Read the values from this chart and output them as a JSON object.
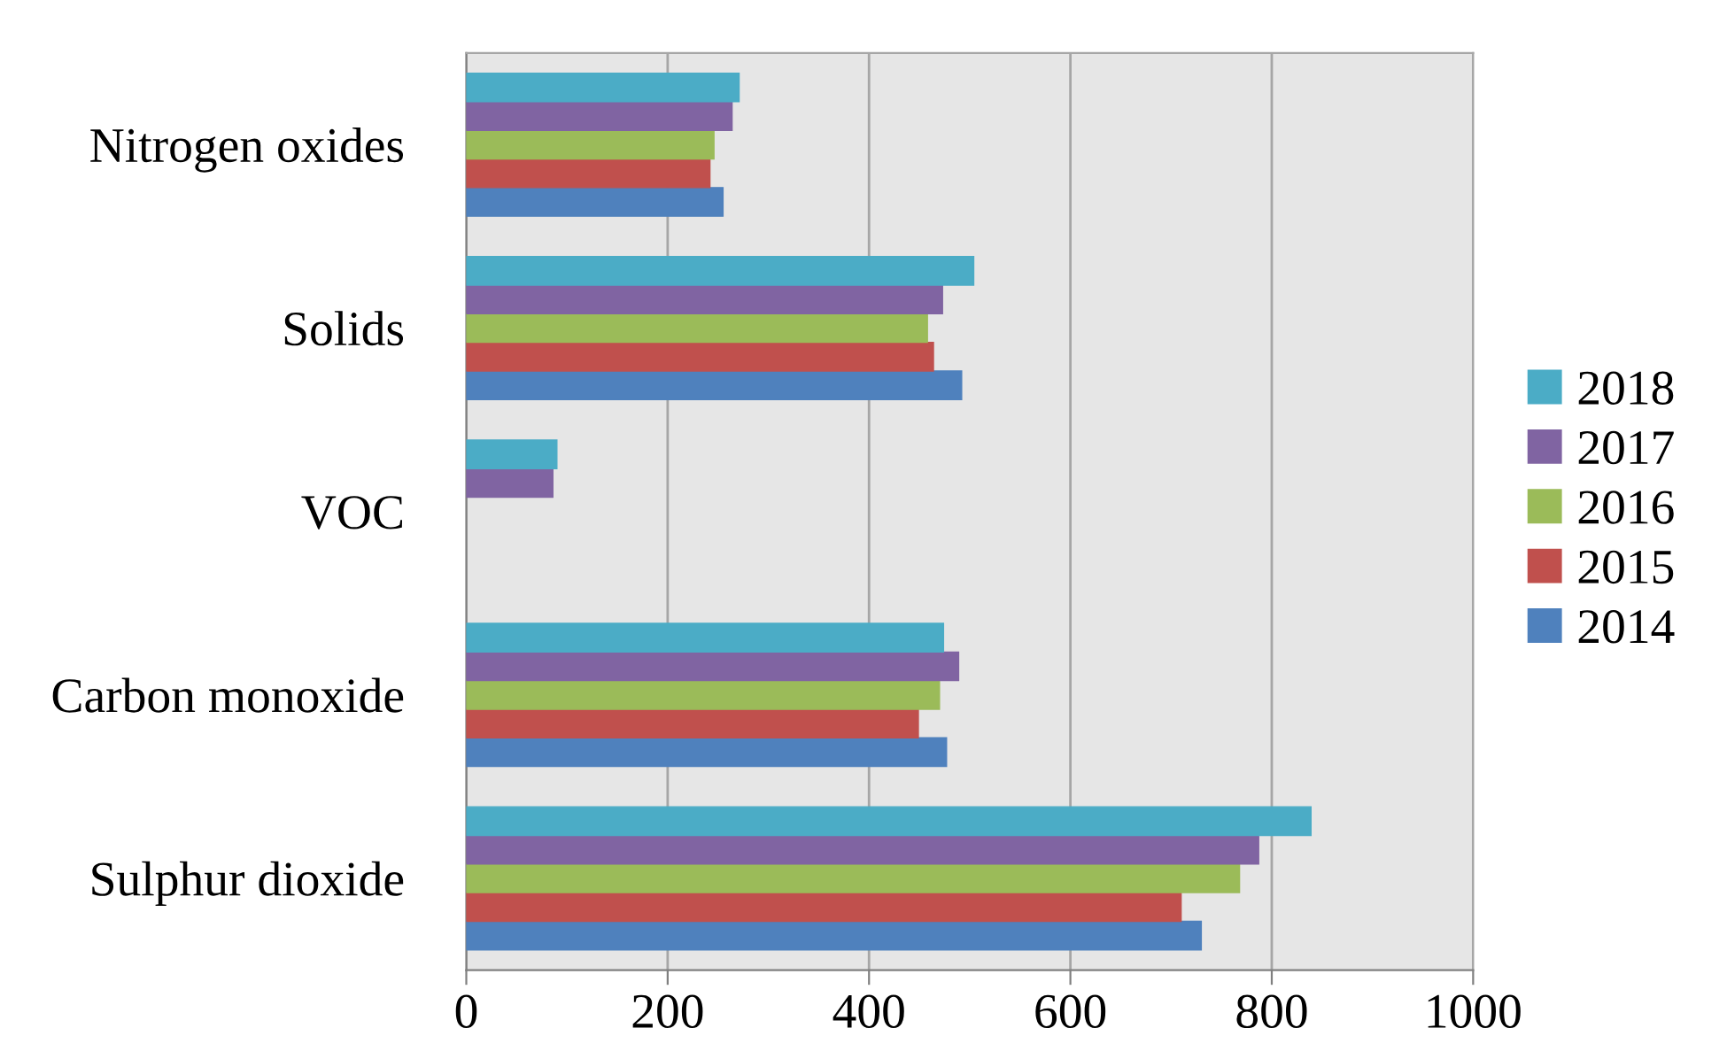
{
  "chart_data": {
    "type": "bar",
    "orientation": "horizontal",
    "categories": [
      "Nitrogen oxides",
      "Solids",
      "VOC",
      "Carbon monoxide",
      "Sulphur dioxide"
    ],
    "series": [
      {
        "name": "2014",
        "color": "#4f81bd",
        "values": [
          255,
          492,
          null,
          477,
          730
        ]
      },
      {
        "name": "2015",
        "color": "#c0504d",
        "values": [
          242,
          464,
          null,
          449,
          710
        ]
      },
      {
        "name": "2016",
        "color": "#9bbb59",
        "values": [
          246,
          458,
          null,
          470,
          768
        ]
      },
      {
        "name": "2017",
        "color": "#8064a2",
        "values": [
          264,
          473,
          86,
          489,
          787
        ]
      },
      {
        "name": "2018",
        "color": "#4bacc6",
        "values": [
          271,
          504,
          90,
          474,
          839
        ]
      }
    ],
    "xlim": [
      0,
      1000
    ],
    "xticks": [
      0,
      200,
      400,
      600,
      800,
      1000
    ],
    "grid": "x",
    "legend": "right"
  }
}
